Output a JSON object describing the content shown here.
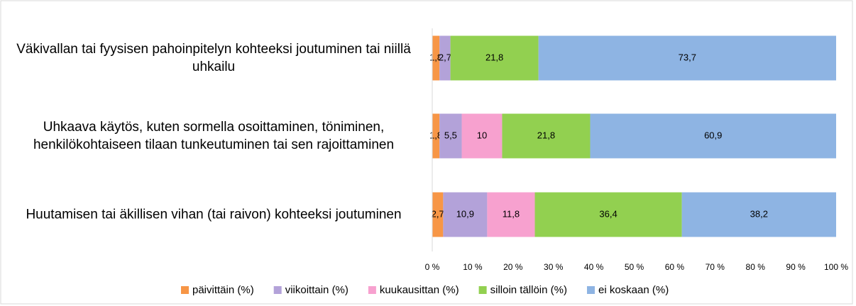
{
  "chart_data": {
    "type": "stacked-bar-horizontal",
    "categories": [
      "Väkivallan tai fyysisen pahoinpitelyn kohteeksi joutuminen tai niillä uhkailu",
      "Uhkaava käytös, kuten sormella osoittaminen, töniminen, henkilökohtaiseen tilaan tunkeutuminen tai sen rajoittaminen",
      "Huutamisen tai äkillisen vihan (tai raivon) kohteeksi joutuminen"
    ],
    "series": [
      {
        "name": "päivittäin (%)",
        "color": "#f79646",
        "values": [
          1.8,
          1.8,
          2.7
        ],
        "value_labels": [
          "1,8",
          "1,8",
          "2,7"
        ]
      },
      {
        "name": "viikoittain (%)",
        "color": "#b3a2d9",
        "values": [
          2.7,
          5.5,
          10.9
        ],
        "value_labels": [
          "2,7",
          "5,5",
          "10,9"
        ]
      },
      {
        "name": "kuukausittan (%)",
        "color": "#f7a1cf",
        "values": [
          0,
          10,
          11.8
        ],
        "value_labels": [
          null,
          "10",
          "11,8"
        ]
      },
      {
        "name": "silloin tällöin (%)",
        "color": "#92d050",
        "values": [
          21.8,
          21.8,
          36.4
        ],
        "value_labels": [
          "21,8",
          "21,8",
          "36,4"
        ]
      },
      {
        "name": "ei koskaan (%)",
        "color": "#8eb4e3",
        "values": [
          73.7,
          60.9,
          38.2
        ],
        "value_labels": [
          "73,7",
          "60,9",
          "38,2"
        ]
      }
    ],
    "xlim": [
      0,
      100
    ],
    "xticks": [
      {
        "value": 0,
        "label": "0 %"
      },
      {
        "value": 10,
        "label": "10 %"
      },
      {
        "value": 20,
        "label": "20 %"
      },
      {
        "value": 30,
        "label": "30 %"
      },
      {
        "value": 40,
        "label": "40 %"
      },
      {
        "value": 50,
        "label": "50 %"
      },
      {
        "value": 60,
        "label": "60 %"
      },
      {
        "value": 70,
        "label": "70 %"
      },
      {
        "value": 80,
        "label": "80 %"
      },
      {
        "value": 90,
        "label": "90 %"
      },
      {
        "value": 100,
        "label": "100 %"
      }
    ],
    "legend": "bottom"
  }
}
